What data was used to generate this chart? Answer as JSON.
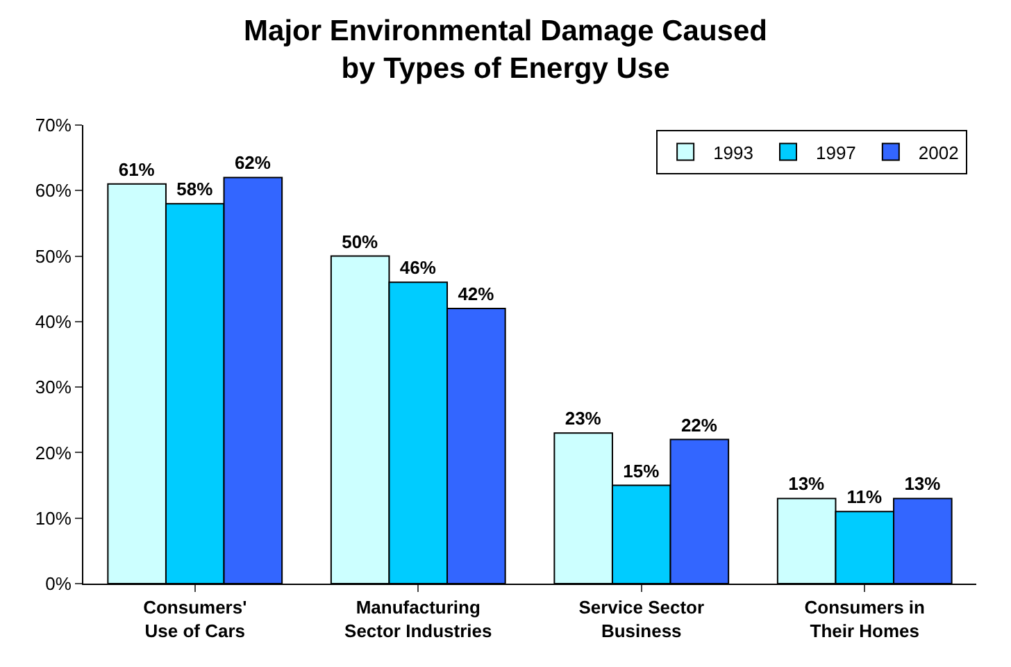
{
  "chart_data": {
    "type": "bar",
    "title": "Major Environmental Damage Caused\nby Types of Energy Use",
    "categories": [
      "Consumers'\nUse of Cars",
      "Manufacturing\nSector Industries",
      "Service Sector\nBusiness",
      "Consumers in\nTheir Homes"
    ],
    "series": [
      {
        "name": "1993",
        "color": "#ccffff",
        "values": [
          61,
          50,
          23,
          13
        ],
        "value_labels": [
          "61%",
          "50%",
          "23%",
          "13%"
        ]
      },
      {
        "name": "1997",
        "color": "#00ccff",
        "values": [
          58,
          46,
          15,
          11
        ],
        "value_labels": [
          "58%",
          "46%",
          "15%",
          "11%"
        ]
      },
      {
        "name": "2002",
        "color": "#3366ff",
        "values": [
          62,
          42,
          22,
          13
        ],
        "value_labels": [
          "62%",
          "42%",
          "22%",
          "13%"
        ]
      }
    ],
    "ylim": [
      0,
      70
    ],
    "yticks": [
      {
        "value": 0,
        "label": "0%"
      },
      {
        "value": 10,
        "label": "10%"
      },
      {
        "value": 20,
        "label": "20%"
      },
      {
        "value": 30,
        "label": "30%"
      },
      {
        "value": 40,
        "label": "40%"
      },
      {
        "value": 50,
        "label": "50%"
      },
      {
        "value": 60,
        "label": "60%"
      },
      {
        "value": 70,
        "label": "70%"
      }
    ],
    "legend": "top right"
  }
}
